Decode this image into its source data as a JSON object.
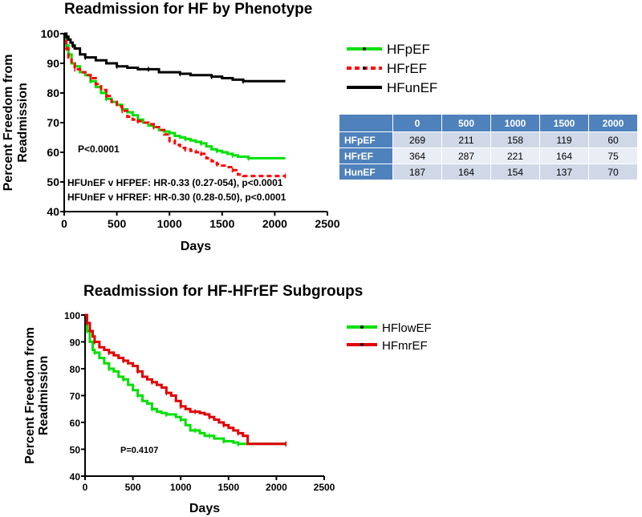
{
  "chart_data": [
    {
      "type": "line",
      "title": "Readmission for HF by Phenotype",
      "xlabel": "Days",
      "ylabel": "Percent Freedom from Readmission",
      "xlim": [
        0,
        2500
      ],
      "ylim": [
        40,
        100
      ],
      "xticks": [
        0,
        500,
        1000,
        1500,
        2000,
        2500
      ],
      "yticks": [
        40,
        50,
        60,
        70,
        80,
        90,
        100
      ],
      "legend_position": "right",
      "annotations": [
        "P<0.0001",
        "HFUnEF v HFPEF: HR-0.33 (0.27-054), p<0.0001",
        "HFUnEF v HFREF: HR-0.30 (0.28-0.50), p<0.0001"
      ],
      "series": [
        {
          "name": "HFpEF",
          "color": "#00e000",
          "style": "solid",
          "x": [
            0,
            20,
            40,
            70,
            100,
            150,
            200,
            250,
            300,
            350,
            400,
            450,
            500,
            550,
            600,
            650,
            700,
            750,
            800,
            850,
            900,
            950,
            1000,
            1050,
            1100,
            1150,
            1200,
            1250,
            1300,
            1350,
            1400,
            1450,
            1500,
            1550,
            1600,
            1650,
            1700,
            1750,
            2100
          ],
          "y": [
            100,
            96,
            93,
            90,
            89,
            87,
            86,
            84,
            82,
            80,
            78,
            77,
            76,
            74.5,
            73.5,
            72.5,
            71,
            70,
            69,
            68.5,
            67.5,
            67,
            66.5,
            65.5,
            65,
            64.5,
            64,
            63.5,
            63,
            62,
            61,
            60.5,
            60,
            59.5,
            59,
            58.5,
            58.5,
            58,
            58
          ]
        },
        {
          "name": "HFrEF",
          "color": "#ff0000",
          "style": "dashed",
          "x": [
            0,
            20,
            40,
            70,
            100,
            150,
            200,
            250,
            300,
            350,
            400,
            450,
            500,
            550,
            600,
            650,
            700,
            750,
            800,
            850,
            900,
            950,
            1000,
            1050,
            1100,
            1150,
            1200,
            1250,
            1300,
            1350,
            1400,
            1450,
            1500,
            1550,
            1600,
            1650,
            1700,
            2100
          ],
          "y": [
            100,
            95,
            92,
            90,
            88,
            87,
            86,
            85,
            83,
            81,
            79,
            77,
            75.5,
            74,
            72,
            71,
            70.5,
            70,
            69.5,
            68.5,
            67.5,
            66,
            64,
            62.5,
            61.5,
            61,
            60.5,
            60,
            59.5,
            58,
            57,
            56,
            55.5,
            55,
            54,
            52.5,
            52,
            52
          ]
        },
        {
          "name": "HFunEF",
          "color": "#000000",
          "style": "solid",
          "x": [
            0,
            20,
            40,
            60,
            80,
            100,
            150,
            200,
            300,
            400,
            500,
            600,
            700,
            800,
            900,
            1000,
            1100,
            1200,
            1300,
            1400,
            1500,
            1600,
            1700,
            2100
          ],
          "y": [
            100,
            99,
            98,
            97,
            96,
            95,
            93,
            92,
            91,
            90,
            89,
            88.5,
            88,
            88,
            87,
            87,
            86.5,
            86,
            86,
            85.5,
            85,
            84.5,
            84,
            84
          ]
        }
      ],
      "number_at_risk": {
        "columns": [
          "0",
          "500",
          "1000",
          "1500",
          "2000"
        ],
        "rows": [
          {
            "label": "HFpEF",
            "values": [
              "269",
              "211",
              "158",
              "119",
              "60"
            ]
          },
          {
            "label": "HFrEF",
            "values": [
              "364",
              "287",
              "221",
              "164",
              "75"
            ]
          },
          {
            "label": "HunEF",
            "values": [
              "187",
              "164",
              "154",
              "137",
              "70"
            ]
          }
        ]
      }
    },
    {
      "type": "line",
      "title": "Readmission for HF-HFrEF Subgroups",
      "xlabel": "Days",
      "ylabel": "Percent Freedom from Readmission",
      "xlim": [
        0,
        2500
      ],
      "ylim": [
        40,
        100
      ],
      "xticks": [
        0,
        500,
        1000,
        1500,
        2000,
        2500
      ],
      "yticks": [
        40,
        50,
        60,
        70,
        80,
        90,
        100
      ],
      "legend_position": "right",
      "annotations": [
        "P=0.4107"
      ],
      "series": [
        {
          "name": "HFlowEF",
          "color": "#00e000",
          "style": "solid",
          "x": [
            0,
            20,
            50,
            80,
            100,
            150,
            200,
            250,
            300,
            350,
            400,
            450,
            500,
            550,
            600,
            650,
            700,
            750,
            800,
            850,
            900,
            950,
            1000,
            1050,
            1100,
            1150,
            1200,
            1250,
            1300,
            1350,
            1400,
            1450,
            1500,
            1550,
            1600,
            1650,
            1700,
            2100
          ],
          "y": [
            100,
            94,
            90,
            87,
            86,
            84,
            82,
            80,
            79,
            77,
            76,
            74,
            72,
            70,
            68,
            67,
            65,
            64,
            63.5,
            63,
            63,
            62,
            61,
            59,
            57,
            57,
            56,
            55,
            55,
            54,
            54,
            53,
            53,
            52.5,
            52,
            52,
            52,
            52
          ]
        },
        {
          "name": "HFmrEF",
          "color": "#e00000",
          "style": "solid",
          "x": [
            0,
            20,
            50,
            80,
            100,
            150,
            200,
            250,
            300,
            350,
            400,
            450,
            500,
            550,
            600,
            650,
            700,
            750,
            800,
            850,
            900,
            950,
            1000,
            1050,
            1100,
            1150,
            1200,
            1250,
            1300,
            1350,
            1400,
            1450,
            1500,
            1550,
            1600,
            1650,
            1700,
            2100
          ],
          "y": [
            100,
            97,
            94,
            92,
            90,
            88,
            87,
            86,
            85,
            84,
            83,
            82,
            81,
            79,
            77,
            76,
            75,
            74,
            73,
            71,
            70,
            68,
            66,
            65,
            64,
            64,
            63.5,
            63,
            62,
            61,
            60,
            59,
            58,
            57,
            56,
            55,
            52,
            52
          ]
        }
      ]
    }
  ]
}
